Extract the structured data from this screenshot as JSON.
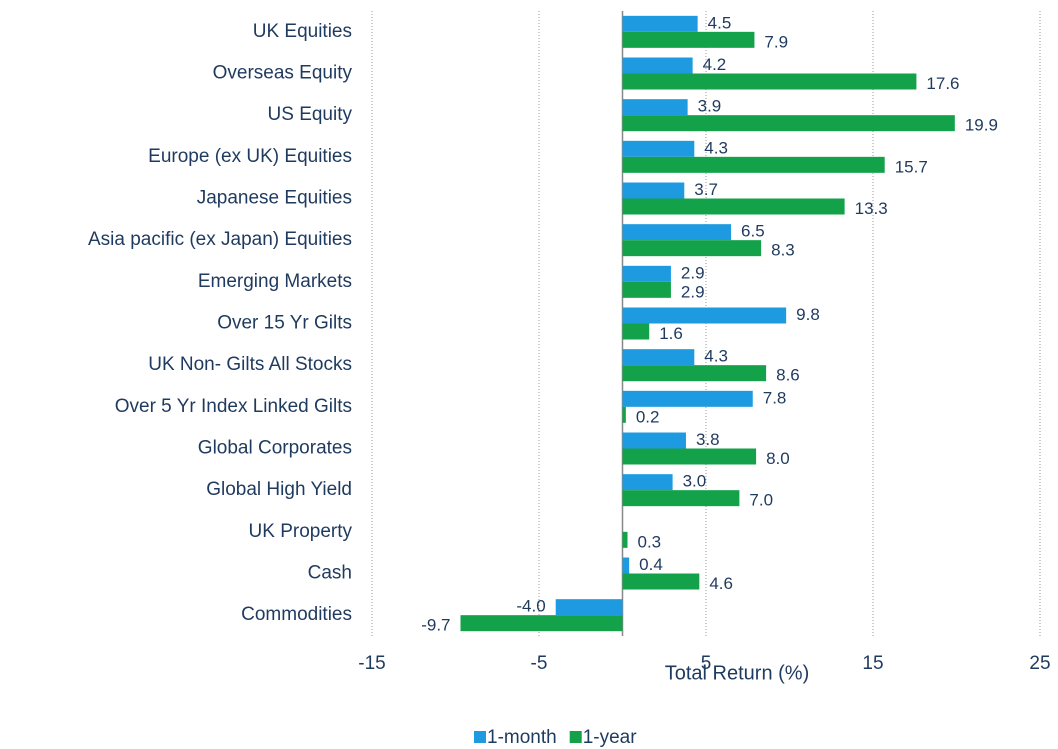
{
  "chart_data": {
    "type": "hbar",
    "categories": [
      "UK Equities",
      "Overseas Equity ",
      "US Equity ",
      "Europe (ex UK) Equities",
      "Japanese Equities",
      "Asia pacific (ex Japan) Equities",
      "Emerging Markets",
      "Over 15 Yr Gilts",
      "UK Non- Gilts All Stocks",
      "Over 5 Yr Index Linked Gilts",
      "Global Corporates",
      "Global High Yield",
      "UK Property ",
      "Cash ",
      "Commodities"
    ],
    "series": [
      {
        "name": "1-month",
        "color": "#1e9be0",
        "values": [
          4.5,
          4.2,
          3.9,
          4.3,
          3.7,
          6.5,
          2.9,
          9.8,
          4.3,
          7.8,
          3.8,
          3.0,
          null,
          0.4,
          -4.0
        ],
        "value_labels": [
          "4.5",
          "4.2",
          "3.9",
          "4.3",
          "3.7",
          "6.5",
          "2.9",
          "9.8",
          "4.3",
          "7.8",
          "3.8",
          "3.0",
          null,
          "0.4",
          "-4.0"
        ]
      },
      {
        "name": "1-year",
        "color": "#13a24a",
        "values": [
          7.9,
          17.6,
          19.9,
          15.7,
          13.3,
          8.3,
          2.9,
          1.6,
          8.6,
          0.2,
          8.0,
          7.0,
          0.3,
          4.6,
          -9.7
        ],
        "value_labels": [
          "7.9",
          "17.6",
          "19.9",
          "15.7",
          "13.3",
          "8.3",
          "2.9",
          "1.6",
          "8.6",
          "0.2",
          "8.0",
          "7.0",
          "0.3",
          "4.6",
          "-9.7"
        ]
      }
    ],
    "x_label": "Total Return (%)",
    "xlim": [
      -15,
      25
    ],
    "xticks": [
      -15,
      -5,
      5,
      15,
      25
    ],
    "grid": true,
    "legend": "bottom"
  }
}
